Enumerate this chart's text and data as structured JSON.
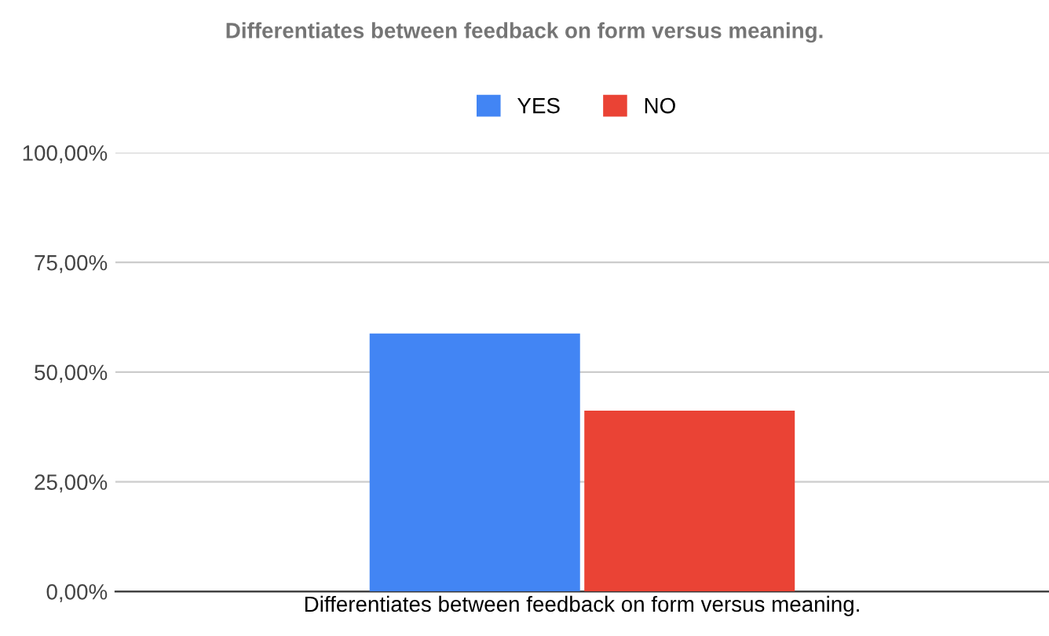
{
  "chart_data": {
    "type": "bar",
    "title": "Differentiates between feedback on form versus meaning.",
    "categories": [
      "Differentiates between feedback on form versus meaning."
    ],
    "series": [
      {
        "name": "YES",
        "color": "#4285f4",
        "values": [
          58.8
        ]
      },
      {
        "name": "NO",
        "color": "#ea4335",
        "values": [
          41.2
        ]
      }
    ],
    "ylim": [
      0,
      100
    ],
    "yticks": [
      {
        "value": 0,
        "label": "0,00%"
      },
      {
        "value": 25,
        "label": "25,00%"
      },
      {
        "value": 50,
        "label": "50,00%"
      },
      {
        "value": 75,
        "label": "75,00%"
      },
      {
        "value": 100,
        "label": "100,00%"
      }
    ],
    "grid": "y",
    "legend": "top"
  }
}
